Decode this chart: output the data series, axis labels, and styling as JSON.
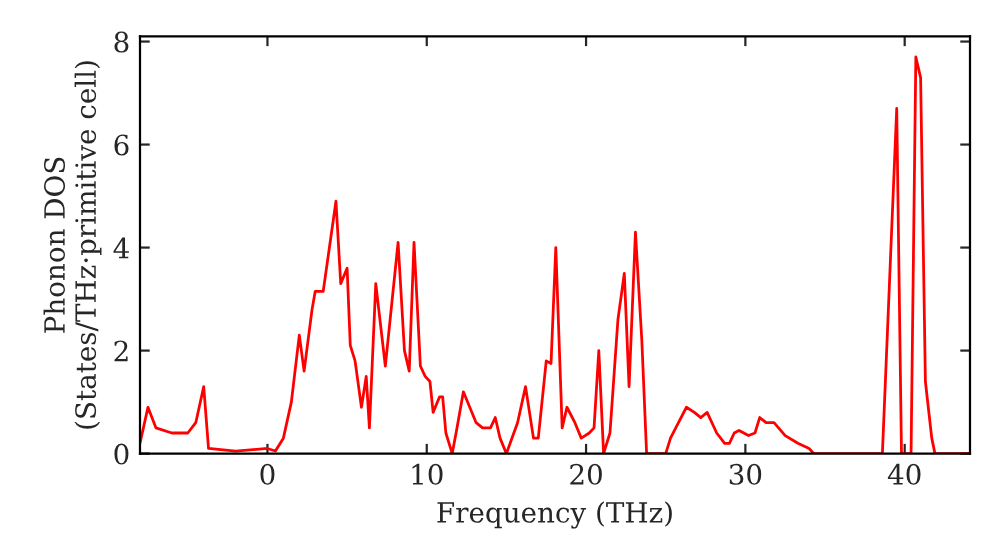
{
  "chart_data": {
    "type": "line",
    "xlabel": "Frequency (THz)",
    "ylabel": "Phonon DOS\n(States/THz·primitive cell)",
    "x": [
      -8,
      -7.5,
      -7,
      -6,
      -5,
      -4.5,
      -4,
      -3.7,
      -2,
      0,
      0.5,
      1,
      1.5,
      2,
      2.3,
      2.8,
      3,
      3.5,
      4.3,
      4.6,
      5,
      5.2,
      5.5,
      5.9,
      6.2,
      6.4,
      6.8,
      7.4,
      8.2,
      8.6,
      8.9,
      9.2,
      9.6,
      9.9,
      10.2,
      10.4,
      10.8,
      11,
      11.2,
      11.6,
      11.9,
      12.3,
      12.7,
      13.1,
      13.5,
      14,
      14.3,
      14.6,
      15,
      15.7,
      16.2,
      16.7,
      17,
      17.5,
      17.8,
      18.1,
      18.5,
      18.8,
      19.3,
      19.7,
      20.2,
      20.5,
      20.8,
      21.1,
      21.5,
      22,
      22.4,
      22.7,
      23.1,
      23.5,
      23.8,
      25,
      25.3,
      25.8,
      26.3,
      26.8,
      27.2,
      27.6,
      28.2,
      28.7,
      29,
      29.3,
      29.6,
      30.2,
      30.6,
      30.9,
      31.3,
      31.8,
      32.5,
      33.3,
      34,
      34.3,
      38.6,
      39.5,
      39.8,
      40.4,
      40.7,
      41.0,
      41.3,
      41.7,
      41.9,
      44.1
    ],
    "series": [
      {
        "color": "#ff0000",
        "values": [
          0.2,
          0.9,
          0.5,
          0.4,
          0.4,
          0.6,
          1.3,
          0.1,
          0.05,
          0.1,
          0.05,
          0.3,
          1.0,
          2.3,
          1.6,
          2.8,
          3.15,
          3.15,
          4.9,
          3.3,
          3.6,
          2.1,
          1.8,
          0.9,
          1.5,
          0.5,
          3.3,
          1.7,
          4.1,
          2.0,
          1.6,
          4.1,
          1.7,
          1.5,
          1.4,
          0.8,
          1.1,
          1.1,
          0.4,
          0.0,
          0.5,
          1.2,
          0.9,
          0.6,
          0.5,
          0.5,
          0.7,
          0.3,
          0.0,
          0.6,
          1.3,
          0.3,
          0.3,
          1.8,
          1.75,
          4.0,
          0.5,
          0.9,
          0.6,
          0.3,
          0.4,
          0.5,
          2.0,
          0.0,
          0.4,
          2.6,
          3.5,
          1.3,
          4.3,
          2.2,
          0.0,
          0.0,
          0.3,
          0.6,
          0.9,
          0.8,
          0.7,
          0.8,
          0.4,
          0.2,
          0.2,
          0.4,
          0.45,
          0.35,
          0.4,
          0.7,
          0.6,
          0.6,
          0.35,
          0.2,
          0.1,
          0.0,
          0.0,
          6.7,
          0.0,
          0.0,
          7.7,
          7.3,
          1.4,
          0.3,
          0.0,
          0.0
        ]
      }
    ],
    "xlim": [
      -8,
      44.1
    ],
    "ylim": [
      0,
      8.1
    ],
    "xticks": [
      0,
      10,
      20,
      30,
      40
    ],
    "yticks": [
      0,
      2,
      4,
      6,
      8
    ],
    "grid": false,
    "marker": "none",
    "line_style": "solid"
  }
}
